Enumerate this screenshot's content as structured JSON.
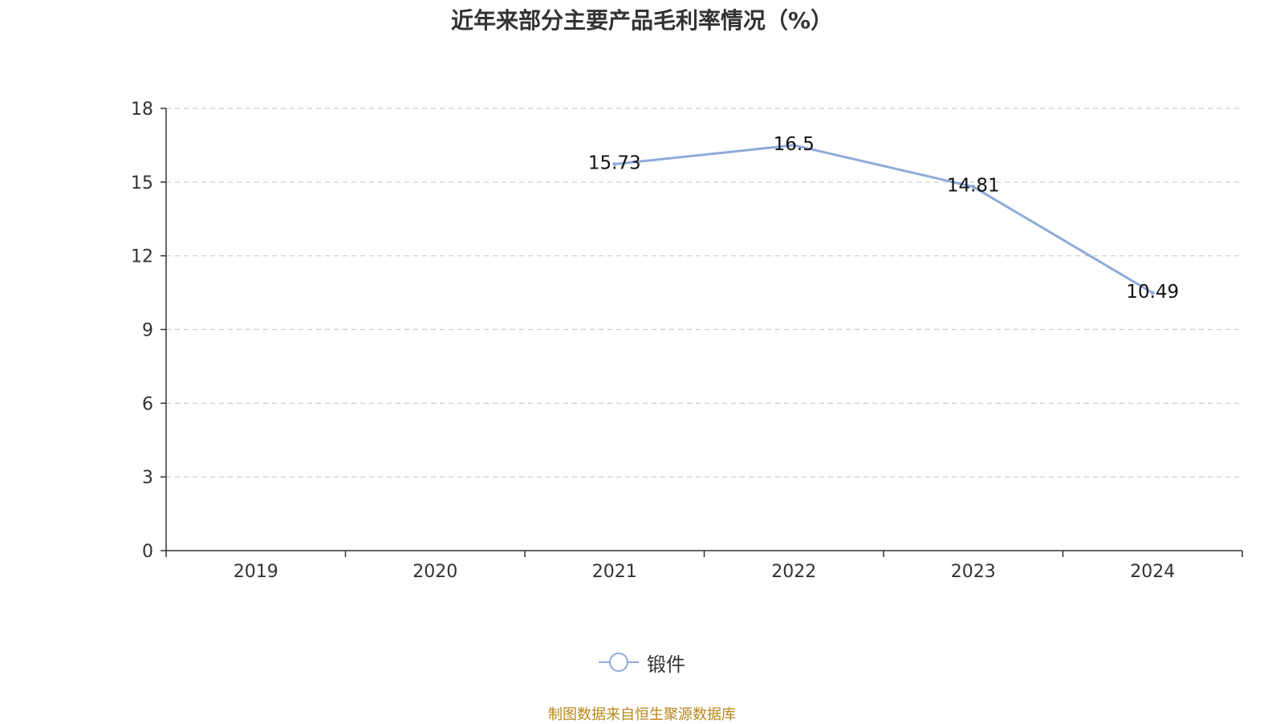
{
  "chart_data": {
    "type": "line",
    "title": "近年来部分主要产品毛利率情况（%）",
    "categories": [
      "2019",
      "2020",
      "2021",
      "2022",
      "2023",
      "2024"
    ],
    "series": [
      {
        "name": "锻件",
        "values": [
          null,
          null,
          15.73,
          16.5,
          14.81,
          10.49
        ],
        "color": "#8eabd8"
      }
    ],
    "ylim": [
      0,
      18
    ],
    "yticks": [
      0,
      3,
      6,
      9,
      12,
      15,
      18
    ],
    "grid": true,
    "legend_position": "bottom-center",
    "source": "制图数据来自恒生聚源数据库"
  }
}
